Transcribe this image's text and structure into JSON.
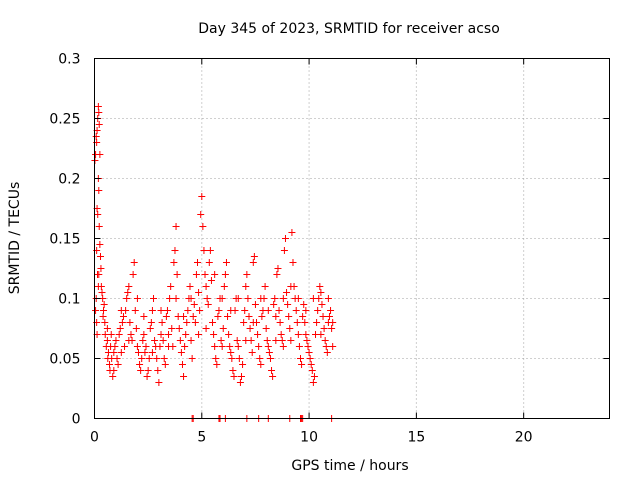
{
  "chart_data": {
    "type": "scatter",
    "title": "Day 345 of 2023, SRMTID for receiver acso",
    "xlabel": "GPS time / hours",
    "ylabel": "SRMTID / TECUs",
    "xlim": [
      0,
      24
    ],
    "ylim": [
      0,
      0.3
    ],
    "xticks": [
      0,
      5,
      10,
      15,
      20
    ],
    "xtick_labels": [
      "0",
      "5",
      "10",
      "15",
      "20"
    ],
    "yticks": [
      0,
      0.05,
      0.1,
      0.15,
      0.2,
      0.25,
      0.3
    ],
    "ytick_labels": [
      "0",
      "0.05",
      "0.1",
      "0.15",
      "0.2",
      "0.25",
      "0.3"
    ],
    "grid": true,
    "marker": "+",
    "color": "#ff0000",
    "series": [
      {
        "name": "SRMTID",
        "points": [
          [
            0.02,
            0.215
          ],
          [
            0.05,
            0.22
          ],
          [
            0.08,
            0.235
          ],
          [
            0.1,
            0.23
          ],
          [
            0.12,
            0.24
          ],
          [
            0.15,
            0.25
          ],
          [
            0.18,
            0.26
          ],
          [
            0.2,
            0.255
          ],
          [
            0.22,
            0.245
          ],
          [
            0.25,
            0.22
          ],
          [
            0.12,
            0.175
          ],
          [
            0.15,
            0.17
          ],
          [
            0.18,
            0.2
          ],
          [
            0.2,
            0.19
          ],
          [
            0.22,
            0.16
          ],
          [
            0.25,
            0.145
          ],
          [
            0.28,
            0.135
          ],
          [
            0.1,
            0.14
          ],
          [
            0.14,
            0.12
          ],
          [
            0.05,
            0.09
          ],
          [
            0.08,
            0.1
          ],
          [
            0.1,
            0.08
          ],
          [
            0.12,
            0.07
          ],
          [
            0.18,
            0.11
          ],
          [
            0.2,
            0.12
          ],
          [
            0.3,
            0.125
          ],
          [
            0.32,
            0.11
          ],
          [
            0.35,
            0.105
          ],
          [
            0.38,
            0.1
          ],
          [
            0.4,
            0.085
          ],
          [
            0.42,
            0.09
          ],
          [
            0.45,
            0.095
          ],
          [
            0.48,
            0.08
          ],
          [
            0.5,
            0.07
          ],
          [
            0.55,
            0.06
          ],
          [
            0.6,
            0.065
          ],
          [
            0.62,
            0.05
          ],
          [
            0.65,
            0.055
          ],
          [
            0.7,
            0.045
          ],
          [
            0.72,
            0.04
          ],
          [
            0.75,
            0.06
          ],
          [
            0.78,
            0.07
          ],
          [
            0.8,
            0.05
          ],
          [
            0.85,
            0.035
          ],
          [
            0.9,
            0.04
          ],
          [
            0.95,
            0.06
          ],
          [
            1.0,
            0.065
          ],
          [
            1.05,
            0.05
          ],
          [
            1.1,
            0.045
          ],
          [
            1.15,
            0.07
          ],
          [
            1.2,
            0.075
          ],
          [
            1.25,
            0.055
          ],
          [
            1.3,
            0.08
          ],
          [
            1.35,
            0.085
          ],
          [
            1.4,
            0.06
          ],
          [
            1.45,
            0.09
          ],
          [
            1.5,
            0.1
          ],
          [
            1.55,
            0.105
          ],
          [
            1.6,
            0.11
          ],
          [
            1.65,
            0.08
          ],
          [
            1.7,
            0.07
          ],
          [
            1.75,
            0.065
          ],
          [
            1.8,
            0.12
          ],
          [
            1.85,
            0.13
          ],
          [
            1.9,
            0.09
          ],
          [
            1.95,
            0.075
          ],
          [
            2.0,
            0.06
          ],
          [
            2.05,
            0.055
          ],
          [
            2.1,
            0.045
          ],
          [
            2.15,
            0.04
          ],
          [
            2.2,
            0.05
          ],
          [
            2.25,
            0.065
          ],
          [
            2.3,
            0.07
          ],
          [
            2.35,
            0.055
          ],
          [
            2.4,
            0.06
          ],
          [
            2.45,
            0.035
          ],
          [
            2.5,
            0.04
          ],
          [
            2.55,
            0.05
          ],
          [
            2.6,
            0.075
          ],
          [
            2.65,
            0.08
          ],
          [
            2.7,
            0.09
          ],
          [
            2.75,
            0.1
          ],
          [
            2.8,
            0.065
          ],
          [
            2.85,
            0.06
          ],
          [
            2.9,
            0.05
          ],
          [
            2.95,
            0.04
          ],
          [
            3.0,
            0.03
          ],
          [
            3.05,
            0.06
          ],
          [
            3.1,
            0.07
          ],
          [
            3.15,
            0.08
          ],
          [
            3.2,
            0.065
          ],
          [
            3.25,
            0.05
          ],
          [
            3.3,
            0.045
          ],
          [
            3.35,
            0.085
          ],
          [
            3.4,
            0.09
          ],
          [
            3.45,
            0.07
          ],
          [
            3.5,
            0.1
          ],
          [
            3.55,
            0.11
          ],
          [
            3.6,
            0.075
          ],
          [
            3.65,
            0.06
          ],
          [
            3.7,
            0.13
          ],
          [
            3.75,
            0.14
          ],
          [
            3.8,
            0.16
          ],
          [
            3.85,
            0.12
          ],
          [
            3.9,
            0.085
          ],
          [
            3.95,
            0.075
          ],
          [
            4.0,
            0.065
          ],
          [
            4.05,
            0.055
          ],
          [
            4.1,
            0.045
          ],
          [
            4.15,
            0.035
          ],
          [
            4.2,
            0.06
          ],
          [
            4.25,
            0.07
          ],
          [
            4.3,
            0.08
          ],
          [
            4.35,
            0.09
          ],
          [
            4.4,
            0.1
          ],
          [
            4.45,
            0.11
          ],
          [
            4.5,
            0.065
          ],
          [
            4.55,
            0.05
          ],
          [
            4.6,
            0.085
          ],
          [
            4.65,
            0.095
          ],
          [
            4.7,
            0.08
          ],
          [
            4.75,
            0.12
          ],
          [
            4.8,
            0.13
          ],
          [
            4.85,
            0.105
          ],
          [
            4.9,
            0.09
          ],
          [
            4.95,
            0.17
          ],
          [
            5.0,
            0.185
          ],
          [
            5.05,
            0.16
          ],
          [
            5.1,
            0.14
          ],
          [
            5.15,
            0.12
          ],
          [
            5.2,
            0.11
          ],
          [
            5.25,
            0.1
          ],
          [
            5.3,
            0.095
          ],
          [
            5.35,
            0.13
          ],
          [
            5.4,
            0.14
          ],
          [
            5.45,
            0.115
          ],
          [
            5.5,
            0.08
          ],
          [
            5.55,
            0.07
          ],
          [
            5.6,
            0.06
          ],
          [
            5.65,
            0.05
          ],
          [
            5.7,
            0.045
          ],
          [
            5.75,
            0.085
          ],
          [
            5.8,
            0.09
          ],
          [
            5.85,
            0.1
          ],
          [
            5.9,
            0.065
          ],
          [
            5.95,
            0.06
          ],
          [
            6.0,
            0.075
          ],
          [
            6.05,
            0.11
          ],
          [
            6.1,
            0.12
          ],
          [
            6.15,
            0.13
          ],
          [
            6.2,
            0.085
          ],
          [
            6.25,
            0.07
          ],
          [
            6.3,
            0.06
          ],
          [
            6.35,
            0.055
          ],
          [
            6.4,
            0.05
          ],
          [
            6.45,
            0.04
          ],
          [
            6.5,
            0.035
          ],
          [
            6.55,
            0.09
          ],
          [
            6.6,
            0.1
          ],
          [
            6.65,
            0.065
          ],
          [
            6.7,
            0.06
          ],
          [
            6.75,
            0.05
          ],
          [
            6.8,
            0.03
          ],
          [
            6.85,
            0.035
          ],
          [
            6.9,
            0.045
          ],
          [
            6.95,
            0.08
          ],
          [
            7.0,
            0.09
          ],
          [
            7.05,
            0.11
          ],
          [
            7.1,
            0.12
          ],
          [
            7.15,
            0.1
          ],
          [
            7.2,
            0.085
          ],
          [
            7.25,
            0.075
          ],
          [
            7.3,
            0.065
          ],
          [
            7.35,
            0.055
          ],
          [
            7.4,
            0.13
          ],
          [
            7.45,
            0.135
          ],
          [
            7.5,
            0.095
          ],
          [
            7.55,
            0.08
          ],
          [
            7.6,
            0.07
          ],
          [
            7.65,
            0.06
          ],
          [
            7.7,
            0.05
          ],
          [
            7.75,
            0.045
          ],
          [
            7.8,
            0.085
          ],
          [
            7.85,
            0.09
          ],
          [
            7.9,
            0.1
          ],
          [
            7.95,
            0.11
          ],
          [
            8.0,
            0.075
          ],
          [
            8.05,
            0.065
          ],
          [
            8.1,
            0.06
          ],
          [
            8.15,
            0.055
          ],
          [
            8.2,
            0.05
          ],
          [
            8.25,
            0.04
          ],
          [
            8.3,
            0.035
          ],
          [
            8.35,
            0.095
          ],
          [
            8.4,
            0.1
          ],
          [
            8.45,
            0.085
          ],
          [
            8.5,
            0.12
          ],
          [
            8.55,
            0.125
          ],
          [
            8.6,
            0.09
          ],
          [
            8.65,
            0.08
          ],
          [
            8.7,
            0.07
          ],
          [
            8.75,
            0.065
          ],
          [
            8.8,
            0.06
          ],
          [
            8.85,
            0.14
          ],
          [
            8.9,
            0.15
          ],
          [
            8.95,
            0.105
          ],
          [
            9.0,
            0.095
          ],
          [
            9.05,
            0.085
          ],
          [
            9.1,
            0.075
          ],
          [
            9.15,
            0.065
          ],
          [
            9.2,
            0.155
          ],
          [
            9.25,
            0.13
          ],
          [
            9.3,
            0.11
          ],
          [
            9.35,
            0.1
          ],
          [
            9.4,
            0.09
          ],
          [
            9.45,
            0.08
          ],
          [
            9.5,
            0.07
          ],
          [
            9.55,
            0.06
          ],
          [
            9.6,
            0.05
          ],
          [
            9.65,
            0.045
          ],
          [
            9.7,
            0.085
          ],
          [
            9.75,
            0.095
          ],
          [
            9.8,
            0.08
          ],
          [
            9.85,
            0.07
          ],
          [
            9.9,
            0.065
          ],
          [
            9.95,
            0.06
          ],
          [
            10.0,
            0.055
          ],
          [
            10.05,
            0.05
          ],
          [
            10.1,
            0.045
          ],
          [
            10.15,
            0.04
          ],
          [
            10.2,
            0.03
          ],
          [
            10.25,
            0.035
          ],
          [
            10.3,
            0.07
          ],
          [
            10.35,
            0.08
          ],
          [
            10.4,
            0.09
          ],
          [
            10.45,
            0.1
          ],
          [
            10.5,
            0.11
          ],
          [
            10.55,
            0.105
          ],
          [
            10.6,
            0.095
          ],
          [
            10.65,
            0.085
          ],
          [
            10.7,
            0.075
          ],
          [
            10.75,
            0.065
          ],
          [
            10.8,
            0.06
          ],
          [
            10.85,
            0.055
          ],
          [
            10.9,
            0.08
          ],
          [
            10.95,
            0.085
          ],
          [
            11.0,
            0.09
          ],
          [
            11.05,
            0.075
          ],
          [
            11.1,
            0.08
          ],
          [
            11.1,
            0.06
          ],
          [
            0.6,
            0.075
          ],
          [
            0.9,
            0.055
          ],
          [
            1.25,
            0.09
          ],
          [
            1.6,
            0.065
          ],
          [
            2.0,
            0.1
          ],
          [
            2.3,
            0.085
          ],
          [
            2.7,
            0.055
          ],
          [
            3.1,
            0.09
          ],
          [
            3.45,
            0.06
          ],
          [
            3.8,
            0.1
          ],
          [
            4.15,
            0.085
          ],
          [
            4.5,
            0.1
          ],
          [
            4.85,
            0.07
          ],
          [
            5.2,
            0.075
          ],
          [
            5.6,
            0.12
          ],
          [
            5.95,
            0.1
          ],
          [
            6.35,
            0.09
          ],
          [
            6.7,
            0.1
          ],
          [
            7.05,
            0.065
          ],
          [
            7.4,
            0.08
          ],
          [
            7.75,
            0.1
          ],
          [
            8.1,
            0.09
          ],
          [
            8.45,
            0.065
          ],
          [
            8.8,
            0.1
          ],
          [
            9.15,
            0.11
          ],
          [
            9.5,
            0.1
          ],
          [
            9.85,
            0.09
          ],
          [
            10.2,
            0.1
          ],
          [
            10.55,
            0.07
          ],
          [
            10.9,
            0.1
          ],
          [
            4.55,
            0.0
          ],
          [
            5.8,
            0.0
          ],
          [
            6.1,
            0.0
          ],
          [
            7.1,
            0.0
          ],
          [
            7.65,
            0.0
          ],
          [
            8.1,
            0.0
          ],
          [
            9.1,
            0.0
          ],
          [
            9.6,
            0.0
          ],
          [
            9.7,
            0.0
          ],
          [
            11.05,
            0.0
          ],
          [
            4.6,
            0.0
          ],
          [
            5.85,
            0.0
          ],
          [
            9.65,
            0.0
          ]
        ]
      }
    ]
  }
}
